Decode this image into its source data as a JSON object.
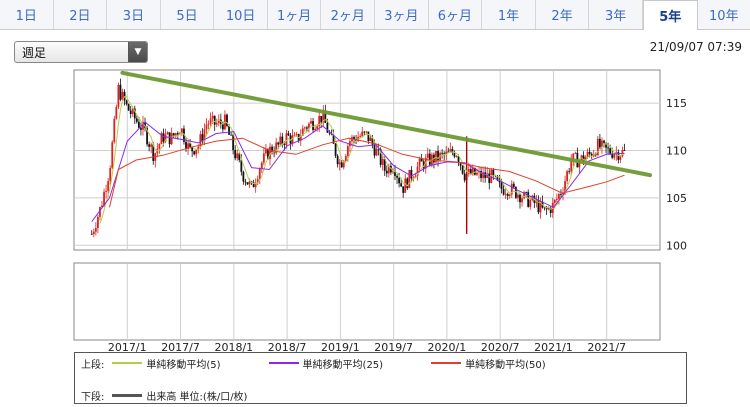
{
  "tabs": [
    "1日",
    "2日",
    "3日",
    "5日",
    "10日",
    "1ヶ月",
    "2ヶ月",
    "3ヶ月",
    "6ヶ月",
    "1年",
    "2年",
    "3年",
    "5年",
    "10年"
  ],
  "active_tab": 12,
  "period_select": {
    "value": "週足"
  },
  "timestamp": "21/09/07 07:39",
  "colors": {
    "ma5": "#b5cc4f",
    "ma25": "#8a2be2",
    "ma50": "#e0402a",
    "trendline": "#6e9a35",
    "up": "#e02020",
    "down": "#111111"
  },
  "chart_data": {
    "type": "candlestick",
    "x_tick_labels": [
      "2017/1",
      "2017/7",
      "2018/1",
      "2018/7",
      "2019/1",
      "2019/7",
      "2020/1",
      "2020/7",
      "2021/1",
      "2021/7"
    ],
    "y_tick_labels": [
      "115",
      "110",
      "105",
      "100"
    ],
    "ylim": [
      99.5,
      118.5
    ],
    "xlim": [
      "2016-09",
      "2021-12"
    ],
    "price_path": [
      [
        "2016-09",
        101.2
      ],
      [
        "2016-10",
        104
      ],
      [
        "2016-11",
        108
      ],
      [
        "2016-12",
        116.5
      ],
      [
        "2017-01",
        114.5
      ],
      [
        "2017-02",
        113.2
      ],
      [
        "2017-03",
        112
      ],
      [
        "2017-04",
        109.5
      ],
      [
        "2017-05",
        111.5
      ],
      [
        "2017-06",
        111.3
      ],
      [
        "2017-07",
        112.5
      ],
      [
        "2017-08",
        110
      ],
      [
        "2017-09",
        110.5
      ],
      [
        "2017-10",
        113
      ],
      [
        "2017-11",
        112.8
      ],
      [
        "2017-12",
        113
      ],
      [
        "2018-01",
        110
      ],
      [
        "2018-02",
        107.5
      ],
      [
        "2018-03",
        106
      ],
      [
        "2018-04",
        108.5
      ],
      [
        "2018-05",
        110
      ],
      [
        "2018-06",
        110.5
      ],
      [
        "2018-07",
        111.5
      ],
      [
        "2018-08",
        111
      ],
      [
        "2018-09",
        112.5
      ],
      [
        "2018-10",
        113
      ],
      [
        "2018-11",
        113.6
      ],
      [
        "2018-12",
        111
      ],
      [
        "2019-01",
        108.5
      ],
      [
        "2019-02",
        111
      ],
      [
        "2019-03",
        111.5
      ],
      [
        "2019-04",
        111.6
      ],
      [
        "2019-05",
        110
      ],
      [
        "2019-06",
        108
      ],
      [
        "2019-07",
        108.5
      ],
      [
        "2019-08",
        106
      ],
      [
        "2019-09",
        107.5
      ],
      [
        "2019-10",
        108.5
      ],
      [
        "2019-11",
        109
      ],
      [
        "2019-12",
        109.3
      ],
      [
        "2020-01",
        109.5
      ],
      [
        "2020-02",
        110
      ],
      [
        "2020-03",
        107.5
      ],
      [
        "2020-04",
        107.5
      ],
      [
        "2020-05",
        107.3
      ],
      [
        "2020-06",
        107.2
      ],
      [
        "2020-07",
        106
      ],
      [
        "2020-08",
        106
      ],
      [
        "2020-09",
        105.5
      ],
      [
        "2020-10",
        104.8
      ],
      [
        "2020-11",
        104.4
      ],
      [
        "2020-12",
        103.5
      ],
      [
        "2021-01",
        104.2
      ],
      [
        "2021-02",
        106
      ],
      [
        "2021-03",
        109
      ],
      [
        "2021-04",
        109
      ],
      [
        "2021-05",
        109.5
      ],
      [
        "2021-06",
        110.5
      ],
      [
        "2021-07",
        110
      ],
      [
        "2021-08",
        109.8
      ],
      [
        "2021-09",
        109.8
      ]
    ],
    "ma25_path": [
      [
        "2016-09",
        102.5
      ],
      [
        "2016-11",
        105
      ],
      [
        "2017-01",
        111
      ],
      [
        "2017-03",
        113
      ],
      [
        "2017-05",
        111.5
      ],
      [
        "2017-07",
        111.2
      ],
      [
        "2017-09",
        110.8
      ],
      [
        "2017-11",
        111.8
      ],
      [
        "2018-01",
        112
      ],
      [
        "2018-03",
        108.2
      ],
      [
        "2018-05",
        108
      ],
      [
        "2018-07",
        110.5
      ],
      [
        "2018-09",
        111.3
      ],
      [
        "2018-11",
        112.6
      ],
      [
        "2019-01",
        111
      ],
      [
        "2019-03",
        110.4
      ],
      [
        "2019-05",
        110.6
      ],
      [
        "2019-07",
        108.4
      ],
      [
        "2019-09",
        107.3
      ],
      [
        "2019-11",
        108.4
      ],
      [
        "2020-01",
        108.8
      ],
      [
        "2020-03",
        108.7
      ],
      [
        "2020-05",
        107.6
      ],
      [
        "2020-07",
        106.8
      ],
      [
        "2020-09",
        105.8
      ],
      [
        "2020-11",
        104.9
      ],
      [
        "2021-01",
        104
      ],
      [
        "2021-03",
        106.4
      ],
      [
        "2021-05",
        108.9
      ],
      [
        "2021-07",
        109.6
      ],
      [
        "2021-09",
        109.7
      ]
    ],
    "ma50_path": [
      [
        "2016-11",
        104
      ],
      [
        "2016-12",
        108
      ],
      [
        "2017-02",
        109
      ],
      [
        "2017-05",
        109.5
      ],
      [
        "2017-08",
        110.3
      ],
      [
        "2017-11",
        111
      ],
      [
        "2018-02",
        111.3
      ],
      [
        "2018-05",
        110
      ],
      [
        "2018-08",
        109.6
      ],
      [
        "2018-11",
        110.6
      ],
      [
        "2019-02",
        111.3
      ],
      [
        "2019-05",
        110.7
      ],
      [
        "2019-08",
        109.6
      ],
      [
        "2019-11",
        109
      ],
      [
        "2020-02",
        108.8
      ],
      [
        "2020-05",
        108.2
      ],
      [
        "2020-08",
        107.8
      ],
      [
        "2020-11",
        106.8
      ],
      [
        "2021-02",
        105.5
      ],
      [
        "2021-05",
        106.2
      ],
      [
        "2021-07",
        106.7
      ],
      [
        "2021-09",
        107.4
      ]
    ],
    "trendline": [
      [
        "2016-12",
        118.2
      ],
      [
        "2021-12",
        107.3
      ]
    ],
    "spike_low": [
      "2020-03",
      101.2
    ]
  },
  "legend": {
    "upper_label": "上段:",
    "ma5": "単純移動平均(5)",
    "ma25": "単純移動平均(25)",
    "ma50": "単純移動平均(50)",
    "lower_label": "下段:",
    "volume": "出来高 単位:(株/口/枚)"
  }
}
